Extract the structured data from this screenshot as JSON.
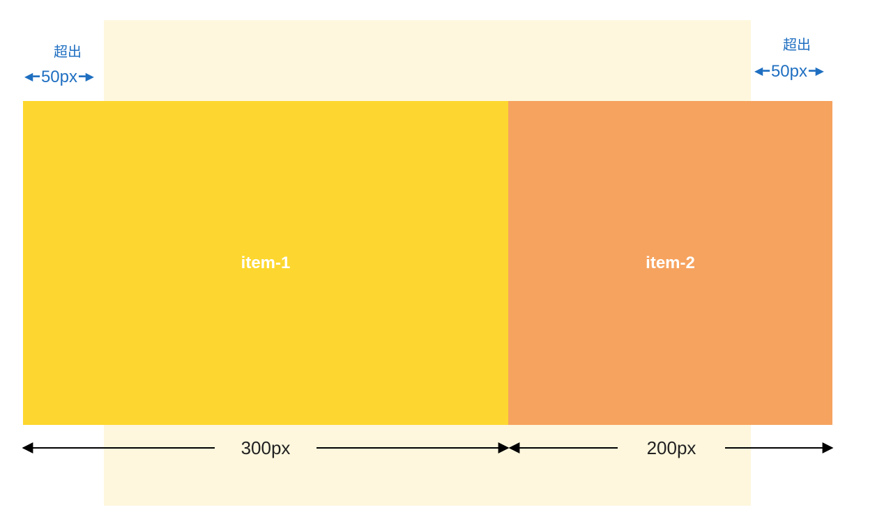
{
  "colors": {
    "container": "#FEF7DD",
    "item_1": "#FDD72F",
    "item_2": "#F6A35F",
    "annotation": "#1F6FC1",
    "dimension_line": "#000000"
  },
  "items": [
    {
      "label": "item-1"
    },
    {
      "label": "item-2"
    }
  ],
  "overflow_left": {
    "caption": "超出",
    "value": "50px",
    "icon_left": "arrow-left-icon",
    "icon_right": "arrow-right-icon"
  },
  "overflow_right": {
    "caption": "超出",
    "value": "50px",
    "icon_left": "arrow-left-icon",
    "icon_right": "arrow-right-icon"
  },
  "dimensions": [
    {
      "label": "300px"
    },
    {
      "label": "200px"
    }
  ]
}
